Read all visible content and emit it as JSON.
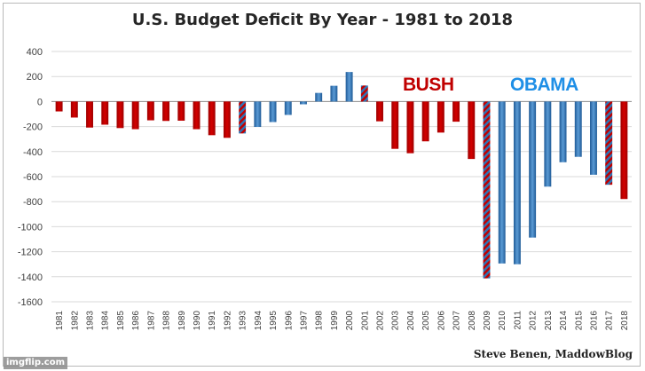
{
  "chart_data": {
    "type": "bar",
    "title": "U.S. Budget Deficit By Year - 1981 to 2018",
    "xlabel": "",
    "ylabel": "",
    "ylim": [
      -1600,
      400
    ],
    "yticks": [
      400,
      200,
      0,
      -200,
      -400,
      -600,
      -800,
      -1000,
      -1200,
      -1400,
      -1600
    ],
    "categories": [
      "1981",
      "1982",
      "1983",
      "1984",
      "1985",
      "1986",
      "1987",
      "1988",
      "1989",
      "1990",
      "1991",
      "1992",
      "1993",
      "1994",
      "1995",
      "1996",
      "1997",
      "1998",
      "1999",
      "2000",
      "2001",
      "2002",
      "2003",
      "2004",
      "2005",
      "2006",
      "2007",
      "2008",
      "2009",
      "2010",
      "2011",
      "2012",
      "2013",
      "2014",
      "2015",
      "2016",
      "2017",
      "2018"
    ],
    "values": [
      -79,
      -128,
      -208,
      -185,
      -212,
      -221,
      -150,
      -155,
      -153,
      -221,
      -269,
      -290,
      -255,
      -203,
      -164,
      -107,
      -22,
      69,
      126,
      236,
      128,
      -158,
      -378,
      -413,
      -318,
      -248,
      -161,
      -459,
      -1413,
      -1294,
      -1300,
      -1087,
      -680,
      -485,
      -442,
      -585,
      -665,
      -779
    ],
    "bar_party": [
      "R",
      "R",
      "R",
      "R",
      "R",
      "R",
      "R",
      "R",
      "R",
      "R",
      "R",
      "R",
      "RD",
      "D",
      "D",
      "D",
      "D",
      "D",
      "D",
      "D",
      "DR",
      "R",
      "R",
      "R",
      "R",
      "R",
      "R",
      "R",
      "RD",
      "D",
      "D",
      "D",
      "D",
      "D",
      "D",
      "D",
      "DR",
      "R"
    ],
    "annotations": [
      {
        "text": "BUSH",
        "color": "#c00000"
      },
      {
        "text": "OBAMA",
        "color": "#1f8fe6"
      }
    ],
    "colors": {
      "republican": "#c00000",
      "democrat": "#2e75b6",
      "grid": "#d9d9d9"
    }
  },
  "credit": "Steve Benen, MaddowBlog",
  "watermark": "imgflip.com"
}
